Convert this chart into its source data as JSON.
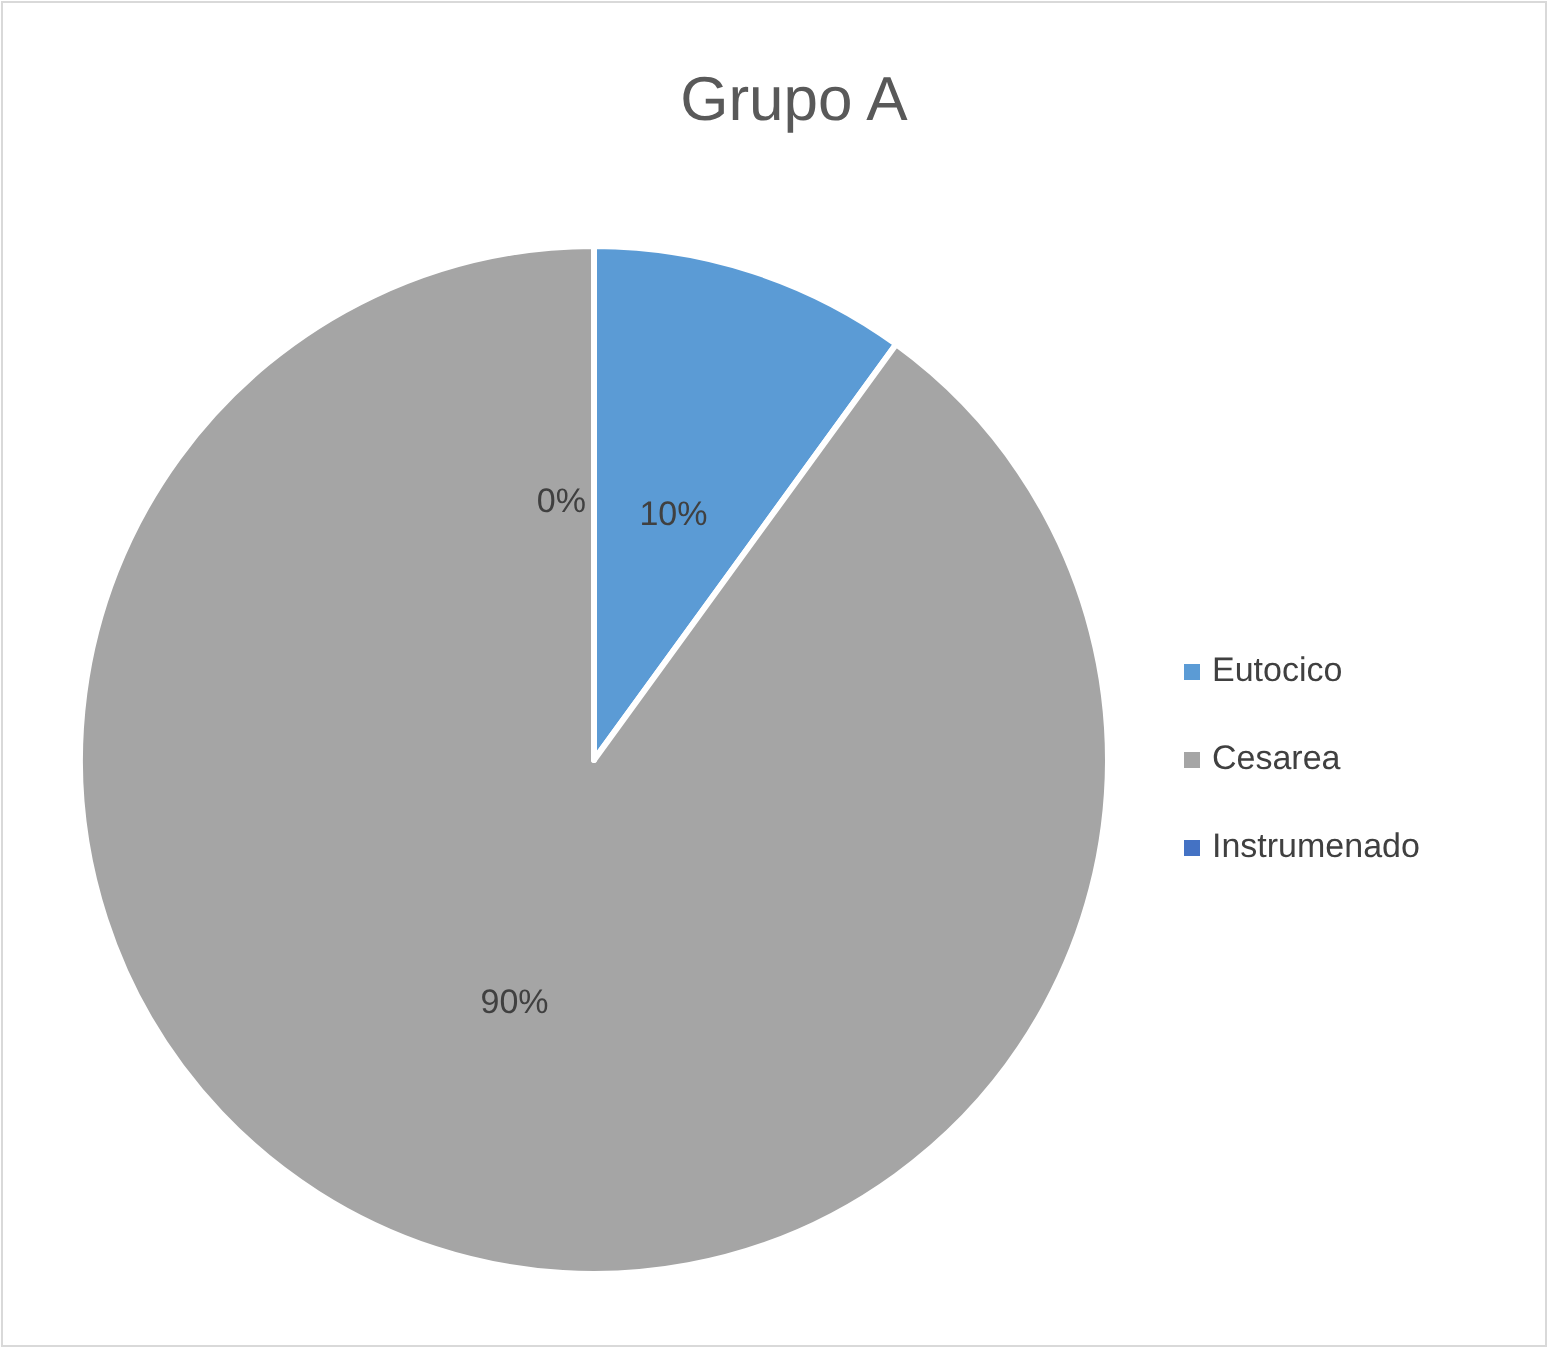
{
  "chart_data": {
    "type": "pie",
    "title": "Grupo A",
    "categories": [
      "Eutocico",
      "Cesarea",
      "Instrumenado"
    ],
    "values": [
      10,
      90,
      0
    ],
    "colors": [
      "#5b9bd5",
      "#a5a5a5",
      "#4472c4"
    ],
    "value_labels": [
      "10%",
      "90%",
      "0%"
    ],
    "legend": "right"
  }
}
